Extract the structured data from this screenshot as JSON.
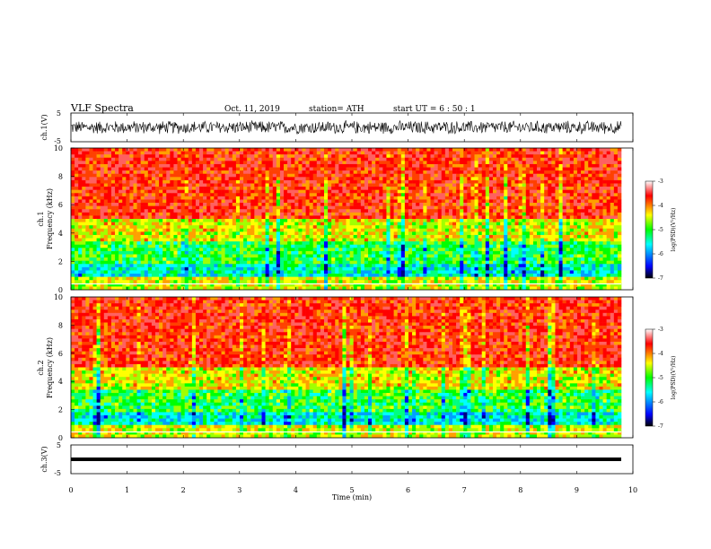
{
  "header": {
    "title": "VLF  Spectra",
    "date": "Oct. 11, 2019",
    "station": "station= ATH",
    "start": "start  UT  =   6  : 50 : 1"
  },
  "chart_data": [
    {
      "type": "line",
      "id": "ch1-waveform",
      "ylabel": "ch.1(V)",
      "ylim": [
        -5,
        5
      ],
      "yticks": [
        "5",
        "-5"
      ],
      "xlim": [
        0,
        10
      ],
      "description_series": "noise waveform amplitude approx -2.5 to 2.5 V",
      "color": "#000000"
    },
    {
      "type": "heatmap",
      "id": "ch1-spectrogram",
      "ylabel_prefix": "ch.1",
      "ylabel": "Frequency  (kHz)",
      "ylim": [
        0,
        10
      ],
      "yticks": [
        "0",
        "2",
        "4",
        "6",
        "8",
        "10"
      ],
      "xlim": [
        0,
        9.8
      ],
      "colorbar": {
        "label": "log(PSD)(V²/Hz)",
        "ticks": [
          "-3",
          "-4",
          "-5",
          "-6",
          "-7"
        ],
        "range": [
          -7,
          -3
        ]
      }
    },
    {
      "type": "heatmap",
      "id": "ch2-spectrogram",
      "ylabel_prefix": "ch.2",
      "ylabel": "Frequency  (kHz)",
      "ylim": [
        0,
        10
      ],
      "yticks": [
        "0",
        "2",
        "4",
        "6",
        "8",
        "10"
      ],
      "xlim": [
        0,
        9.8
      ],
      "colorbar": {
        "label": "log(PSD)(V²/Hz)",
        "ticks": [
          "-3",
          "-4",
          "-5",
          "-6",
          "-7"
        ],
        "range": [
          -7,
          -3
        ]
      }
    },
    {
      "type": "line",
      "id": "ch3-waveform",
      "ylabel": "ch.3(V)",
      "ylim": [
        -5,
        5
      ],
      "yticks": [
        "5",
        "-5"
      ],
      "xlim": [
        0,
        10
      ],
      "description_series": "flat thick trace near -2 V",
      "color": "#000000"
    }
  ],
  "xaxis": {
    "label": "Time  (min)",
    "ticks": [
      "0",
      "1",
      "2",
      "3",
      "4",
      "5",
      "6",
      "7",
      "8",
      "9",
      "10"
    ],
    "range": [
      0,
      10
    ]
  },
  "colors": {
    "scale": [
      "#000000",
      "#0000ff",
      "#00ffff",
      "#00ff00",
      "#ffff00",
      "#ff0000",
      "#ffffff"
    ]
  }
}
